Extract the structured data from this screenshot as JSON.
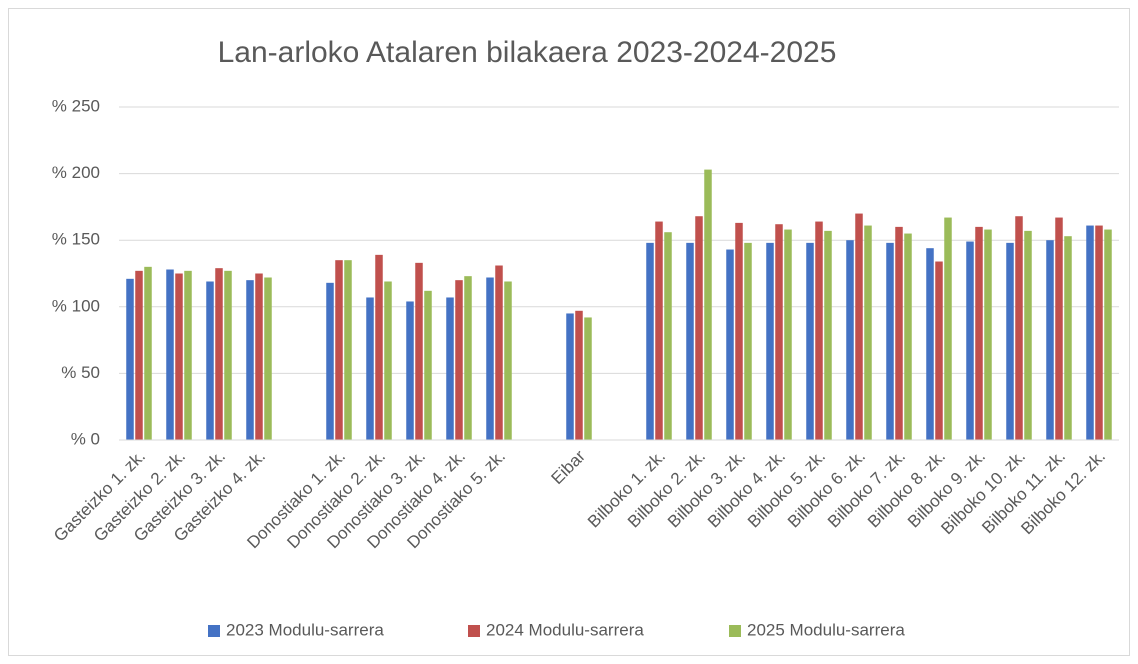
{
  "chart_data": {
    "type": "bar",
    "title": "Lan-arloko Atalaren bilakaera 2023-2024-2025",
    "categories": [
      "Gasteizko 1. zk.",
      "Gasteizko 2. zk.",
      "Gasteizko 3. zk.",
      "Gasteizko 4. zk.",
      null,
      "Donostiako 1. zk.",
      "Donostiako 2. zk.",
      "Donostiako 3. zk.",
      "Donostiako 4. zk.",
      "Donostiako 5. zk.",
      null,
      "Eibar",
      null,
      "Bilboko 1. zk.",
      "Bilboko 2. zk.",
      "Bilboko 3. zk.",
      "Bilboko 4. zk.",
      "Bilboko 5. zk.",
      "Bilboko 6. zk.",
      "Bilboko 7. zk.",
      "Bilboko 8. zk.",
      "Bilboko 9. zk.",
      "Bilboko 10. zk.",
      "Bilboko 11. zk.",
      "Bilboko 12. zk."
    ],
    "series": [
      {
        "name": "2023 Modulu-sarrera",
        "color": "#4472c4",
        "values": [
          121,
          128,
          119,
          120,
          null,
          118,
          107,
          104,
          107,
          122,
          null,
          95,
          null,
          148,
          148,
          143,
          148,
          148,
          150,
          148,
          144,
          149,
          148,
          150,
          161
        ]
      },
      {
        "name": "2024 Modulu-sarrera",
        "color": "#c0504d",
        "values": [
          127,
          125,
          129,
          125,
          null,
          135,
          139,
          133,
          120,
          131,
          null,
          97,
          null,
          164,
          168,
          163,
          162,
          164,
          170,
          160,
          134,
          160,
          168,
          167,
          161
        ]
      },
      {
        "name": "2025 Modulu-sarrera",
        "color": "#9bbb59",
        "values": [
          130,
          127,
          127,
          122,
          null,
          135,
          119,
          112,
          123,
          119,
          null,
          92,
          null,
          156,
          203,
          148,
          158,
          157,
          161,
          155,
          167,
          158,
          157,
          153,
          158
        ]
      }
    ],
    "ylim": [
      0,
      250
    ],
    "yticks": [
      {
        "value": 0,
        "label": "% 0"
      },
      {
        "value": 50,
        "label": "% 50"
      },
      {
        "value": 100,
        "label": "% 100"
      },
      {
        "value": 150,
        "label": "% 150"
      },
      {
        "value": 200,
        "label": "% 200"
      },
      {
        "value": 250,
        "label": "% 250"
      }
    ],
    "grid": true,
    "legend": "bottom"
  }
}
